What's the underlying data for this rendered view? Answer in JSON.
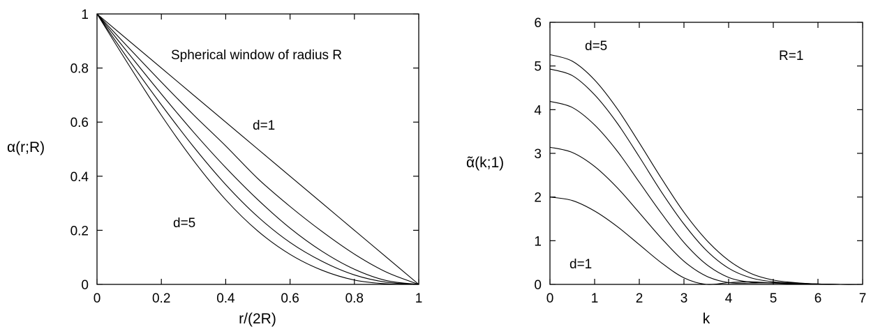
{
  "chart_data": [
    {
      "type": "line",
      "xlabel": "r/(2R)",
      "ylabel": "α(r;R)",
      "xlim": [
        0,
        1
      ],
      "ylim": [
        0,
        1
      ],
      "xticks": [
        "0",
        "0.2",
        "0.4",
        "0.6",
        "0.8",
        "1"
      ],
      "yticks": [
        "0",
        "0.2",
        "0.4",
        "0.6",
        "0.8",
        "1"
      ],
      "annotations": [
        "Spherical window of radius R",
        "d=1",
        "d=5"
      ],
      "grid": false,
      "series": [
        {
          "x": [
            0,
            0.1,
            0.2,
            0.3,
            0.4,
            0.5,
            0.6,
            0.7,
            0.8,
            0.9,
            1
          ],
          "values": [
            1,
            0.9,
            0.8,
            0.7,
            0.6,
            0.5,
            0.4,
            0.3,
            0.2,
            0.1,
            0
          ]
        },
        {
          "x": [
            0,
            0.1,
            0.2,
            0.3,
            0.4,
            0.5,
            0.6,
            0.7,
            0.8,
            0.9,
            1
          ],
          "values": [
            1,
            0.873,
            0.748,
            0.627,
            0.512,
            0.391,
            0.288,
            0.195,
            0.112,
            0.045,
            0
          ]
        },
        {
          "x": [
            0,
            0.1,
            0.2,
            0.3,
            0.4,
            0.5,
            0.6,
            0.7,
            0.8,
            0.9,
            1
          ],
          "values": [
            1,
            0.851,
            0.704,
            0.563,
            0.432,
            0.313,
            0.208,
            0.122,
            0.056,
            0.014,
            0
          ]
        },
        {
          "x": [
            0,
            0.1,
            0.2,
            0.3,
            0.4,
            0.5,
            0.6,
            0.7,
            0.8,
            0.9,
            1
          ],
          "values": [
            1,
            0.828,
            0.664,
            0.509,
            0.369,
            0.25,
            0.155,
            0.085,
            0.035,
            0.008,
            0
          ]
        },
        {
          "x": [
            0,
            0.1,
            0.2,
            0.3,
            0.4,
            0.5,
            0.6,
            0.7,
            0.8,
            0.9,
            1
          ],
          "values": [
            1,
            0.809,
            0.625,
            0.458,
            0.313,
            0.197,
            0.111,
            0.052,
            0.016,
            0.002,
            0
          ]
        }
      ]
    },
    {
      "type": "line",
      "xlabel": "k",
      "ylabel": "ᾶ(k;1)",
      "xlim": [
        0,
        7
      ],
      "ylim": [
        0,
        6
      ],
      "xticks": [
        "0",
        "1",
        "2",
        "3",
        "4",
        "5",
        "6",
        "7"
      ],
      "yticks": [
        "0",
        "1",
        "2",
        "3",
        "4",
        "5",
        "6"
      ],
      "annotations": [
        "d=5",
        "R=1",
        "d=1"
      ],
      "grid": false,
      "series": [
        {
          "x": [
            0,
            0.5,
            1,
            1.5,
            2,
            2.5,
            3,
            3.5,
            4,
            4.5,
            5,
            5.5,
            6,
            6.5,
            7
          ],
          "values": [
            2.0,
            1.92,
            1.68,
            1.33,
            0.91,
            0.49,
            0.15,
            0.0,
            0.04,
            0.06,
            0.03,
            0.01,
            0.0,
            0.0,
            0.0
          ]
        },
        {
          "x": [
            0,
            0.5,
            1,
            1.5,
            2,
            2.5,
            3,
            3.5,
            4,
            4.5,
            5,
            5.5,
            6,
            6.5,
            7
          ],
          "values": [
            3.14,
            3.02,
            2.7,
            2.22,
            1.64,
            1.05,
            0.53,
            0.19,
            0.04,
            0.03,
            0.04,
            0.03,
            0.01,
            0.0,
            0.0
          ]
        },
        {
          "x": [
            0,
            0.5,
            1,
            1.5,
            2,
            2.5,
            3,
            3.5,
            4,
            4.5,
            5,
            5.5,
            6,
            6.5,
            7
          ],
          "values": [
            4.19,
            4.05,
            3.65,
            3.06,
            2.34,
            1.62,
            0.96,
            0.46,
            0.16,
            0.05,
            0.03,
            0.02,
            0.01,
            0.0,
            0.0
          ]
        },
        {
          "x": [
            0,
            0.5,
            1,
            1.5,
            2,
            2.5,
            3,
            3.5,
            4,
            4.5,
            5,
            5.5,
            6,
            6.5,
            7
          ],
          "values": [
            4.93,
            4.78,
            4.34,
            3.7,
            2.92,
            2.11,
            1.38,
            0.78,
            0.37,
            0.15,
            0.06,
            0.03,
            0.01,
            0.0,
            0.0
          ]
        },
        {
          "x": [
            0,
            0.5,
            1,
            1.5,
            2,
            2.5,
            3,
            3.5,
            4,
            4.5,
            5,
            5.5,
            6,
            6.5,
            7
          ],
          "values": [
            5.26,
            5.11,
            4.68,
            4.03,
            3.24,
            2.42,
            1.65,
            1.02,
            0.55,
            0.25,
            0.1,
            0.04,
            0.01,
            0.0,
            0.0
          ]
        }
      ]
    }
  ]
}
